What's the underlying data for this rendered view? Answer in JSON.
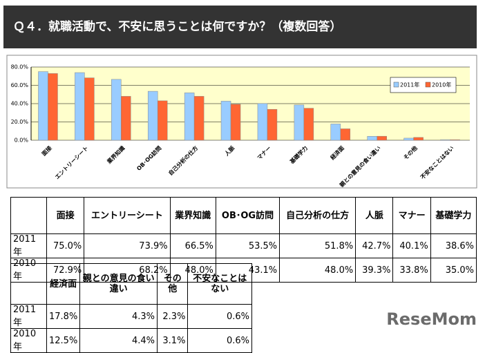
{
  "header": {
    "title": "Ｑ４．就職活動で、不安に思うことは何ですか？（複数回答）"
  },
  "chart_data": {
    "type": "bar",
    "categories": [
      "面接",
      "エントリーシート",
      "業界知識",
      "OB･OG訪問",
      "自己分析の仕方",
      "人脈",
      "マナー",
      "基礎学力",
      "経済面",
      "親との意見の食い違い",
      "その他",
      "不安なことはない"
    ],
    "series": [
      {
        "name": "2011年",
        "color": "#99ccff",
        "values": [
          75.0,
          73.9,
          66.5,
          53.5,
          51.8,
          42.7,
          40.1,
          38.6,
          17.8,
          4.3,
          2.3,
          0.6
        ],
        "value_labels": [
          "75.0%",
          "73.9%",
          "66.5%",
          "53.5%",
          "51.8%",
          "42.7%",
          "40.1%",
          "38.6%",
          "17.8%",
          "4.3%",
          "2.3%",
          "0.6%"
        ]
      },
      {
        "name": "2010年",
        "color": "#ff6633",
        "values": [
          72.9,
          68.2,
          48.0,
          43.1,
          48.0,
          39.3,
          33.8,
          35.0,
          12.5,
          4.4,
          3.1,
          0.6
        ],
        "value_labels": [
          "72.9%",
          "68.2%",
          "48.0%",
          "43.1%",
          "48.0%",
          "39.3%",
          "33.8%",
          "35.0%",
          "12.5%",
          "4.4%",
          "3.1%",
          "0.6%"
        ]
      }
    ],
    "ylim": [
      0,
      80
    ],
    "yticks": [
      {
        "value": 0,
        "label": "0.0%"
      },
      {
        "value": 20,
        "label": "20.0%"
      },
      {
        "value": 40,
        "label": "40.0%"
      },
      {
        "value": 60,
        "label": "60.0%"
      },
      {
        "value": 80,
        "label": "80.0%"
      }
    ],
    "grid": true,
    "legend": "upper right"
  },
  "watermark": "ReseMom"
}
